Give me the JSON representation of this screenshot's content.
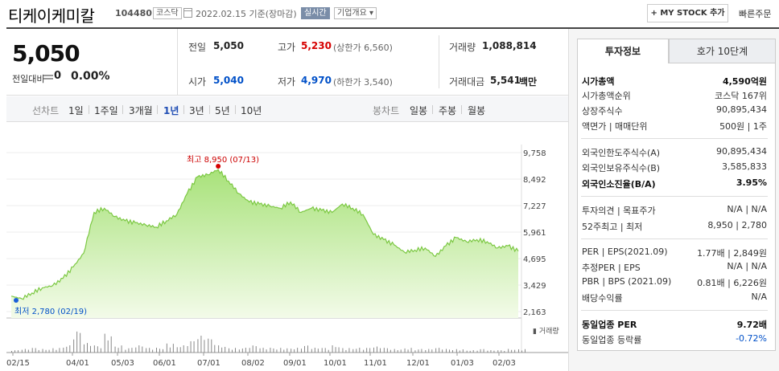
{
  "header": {
    "title": "티케이케미칼",
    "code": "104480",
    "market": "코스닥",
    "date_text": "2022.02.15  기준(장마감)",
    "realtime": "실시간",
    "company_overview": "기업개요 ▾",
    "mystock": "+ MY STOCK 추가",
    "quick_order": "빠른주문"
  },
  "price": {
    "current": "5,050",
    "change_label": "전일대비",
    "change_value": "0",
    "change_rate": "0.00%",
    "prev_close_label": "전일",
    "prev_close": "5,050",
    "open_label": "시가",
    "open": "5,040",
    "high_label": "고가",
    "high": "5,230",
    "upper_limit": "(상한가 6,560)",
    "low_label": "저가",
    "low": "4,970",
    "lower_limit": "(하한가 3,540)",
    "volume_label": "거래량",
    "volume": "1,088,814",
    "amount_label": "거래대금",
    "amount": "5,541",
    "amount_unit": "백만"
  },
  "tabs": {
    "line_label": "선차트",
    "line": [
      "1일",
      "1주일",
      "3개월",
      "1년",
      "3년",
      "5년",
      "10년"
    ],
    "active": "1년",
    "candle_label": "봉차트",
    "candle": [
      "일봉",
      "주봉",
      "월봉"
    ]
  },
  "chart_data": {
    "type": "area",
    "y_ticks": [
      "9,758",
      "8,492",
      "7,227",
      "5,961",
      "4,695",
      "3,429",
      "2,163"
    ],
    "ylim": [
      2163,
      9758
    ],
    "x_ticks": [
      "02/15",
      "04/01",
      "05/03",
      "06/01",
      "07/01",
      "08/02",
      "09/01",
      "10/01",
      "11/01",
      "12/01",
      "01/03",
      "02/03"
    ],
    "x": [
      "02/15",
      "02/19",
      "02/28",
      "03/08",
      "03/16",
      "03/24",
      "04/01",
      "04/09",
      "04/19",
      "04/27",
      "05/03",
      "05/11",
      "05/19",
      "05/27",
      "06/01",
      "06/09",
      "06/17",
      "06/25",
      "07/01",
      "07/09",
      "07/13",
      "07/20",
      "07/28",
      "08/02",
      "08/10",
      "08/18",
      "08/26",
      "09/01",
      "09/09",
      "09/17",
      "09/25",
      "10/01",
      "10/09",
      "10/17",
      "10/25",
      "11/01",
      "11/09",
      "11/17",
      "11/25",
      "12/01",
      "12/09",
      "12/17",
      "12/25",
      "01/03",
      "01/11",
      "01/19",
      "01/27",
      "02/03",
      "02/11",
      "02/15"
    ],
    "values": [
      2900,
      2780,
      3050,
      3300,
      3400,
      3750,
      4300,
      4950,
      6900,
      7100,
      6700,
      6500,
      6400,
      6300,
      6200,
      6500,
      6800,
      7800,
      8600,
      8700,
      8950,
      8400,
      7800,
      7400,
      7300,
      7200,
      7100,
      7400,
      6900,
      7100,
      7000,
      6900,
      7300,
      7100,
      6800,
      5850,
      5600,
      5350,
      5000,
      5100,
      5200,
      4800,
      5300,
      5700,
      5500,
      5600,
      5500,
      5200,
      5300,
      5050
    ],
    "max_label": "최고 8,950 (07/13)",
    "min_label": "최저 2,780 (02/19)",
    "volume_label": "거래량",
    "volumes": [
      0.1,
      0.15,
      0.2,
      0.15,
      0.2,
      0.3,
      0.9,
      0.4,
      0.3,
      0.8,
      0.3,
      0.2,
      0.3,
      0.2,
      0.2,
      0.4,
      0.3,
      0.5,
      0.7,
      0.6,
      0.3,
      0.2,
      0.2,
      0.3,
      0.2,
      0.2,
      0.2,
      0.2,
      0.3,
      0.2,
      0.2,
      0.3,
      0.2,
      0.2,
      0.2,
      0.25,
      0.2,
      0.15,
      0.2,
      0.15,
      0.15,
      0.2,
      0.15,
      0.15,
      0.1,
      0.15,
      0.1,
      0.1,
      0.15,
      0.15
    ]
  },
  "right": {
    "tab_info": "투자정보",
    "tab_orderbook": "호가 10단계",
    "rows": [
      {
        "l": "시가총액",
        "r": "4,590억원",
        "bold": true
      },
      {
        "l": "시가총액순위",
        "r": "코스닥 167위"
      },
      {
        "l": "상장주식수",
        "r": "90,895,434"
      },
      {
        "l": "액면가 | 매매단위",
        "r": "500원 | 1주"
      },
      {
        "l": "외국인한도주식수(A)",
        "r": "90,895,434"
      },
      {
        "l": "외국인보유주식수(B)",
        "r": "3,585,833"
      },
      {
        "l": "외국인소진율(B/A)",
        "r": "3.95%",
        "bold": true
      },
      {
        "l": "투자의견 | 목표주가",
        "r": "N/A | N/A"
      },
      {
        "l": "52주최고 | 최저",
        "r": "8,950 | 2,780"
      },
      {
        "l": "PER | EPS(2021.09)",
        "r": "1.77배 | 2,849원"
      },
      {
        "l": "추정PER | EPS",
        "r": "N/A | N/A"
      },
      {
        "l": "PBR | BPS (2021.09)",
        "r": "0.81배 | 6,226원"
      },
      {
        "l": "배당수익률",
        "r": "N/A"
      },
      {
        "l": "동일업종 PER",
        "r": "9.72배",
        "bold": true
      },
      {
        "l": "동일업종 등락률",
        "r": "-0.72%"
      }
    ]
  }
}
